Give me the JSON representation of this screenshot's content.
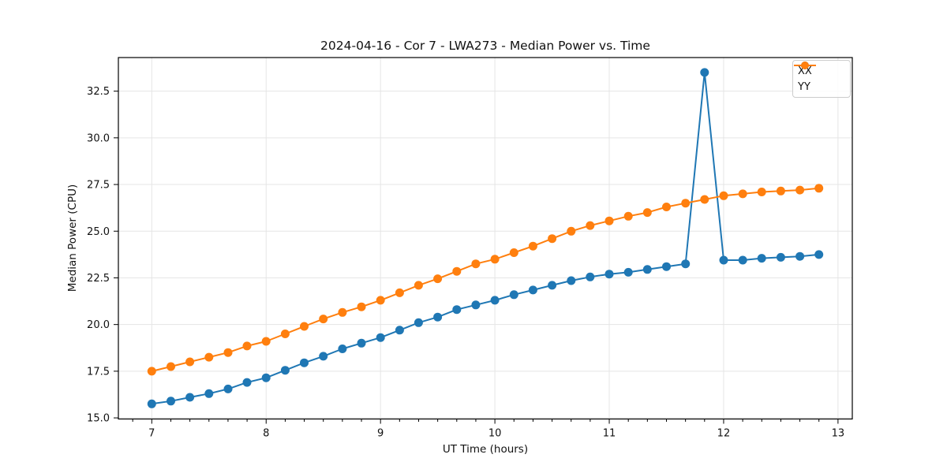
{
  "chart_data": {
    "type": "line",
    "title": "2024-04-16 - Cor 7 - LWA273 - Median Power vs. Time",
    "xlabel": "UT Time (hours)",
    "ylabel": "Median Power (CPU)",
    "xlim": [
      6.708,
      13.125
    ],
    "ylim": [
      14.94,
      34.3
    ],
    "x_ticks": [
      7,
      8,
      9,
      10,
      11,
      12,
      13
    ],
    "y_ticks": [
      15.0,
      17.5,
      20.0,
      22.5,
      25.0,
      27.5,
      30.0,
      32.5
    ],
    "x_minor_tick_step": 0.1667,
    "grid": true,
    "grid_color": "#e5e5e5",
    "legend_position": "upper right",
    "x": [
      7.0,
      7.167,
      7.333,
      7.5,
      7.667,
      7.833,
      8.0,
      8.167,
      8.333,
      8.5,
      8.667,
      8.833,
      9.0,
      9.167,
      9.333,
      9.5,
      9.667,
      9.833,
      10.0,
      10.167,
      10.333,
      10.5,
      10.667,
      10.833,
      11.0,
      11.167,
      11.333,
      11.5,
      11.667,
      11.833,
      12.0,
      12.167,
      12.333,
      12.5,
      12.667,
      12.833
    ],
    "series": [
      {
        "name": "XX",
        "color": "#1f77b4",
        "values": [
          15.75,
          15.9,
          16.1,
          16.3,
          16.55,
          16.9,
          17.15,
          17.55,
          17.95,
          18.3,
          18.7,
          19.0,
          19.3,
          19.7,
          20.1,
          20.4,
          20.8,
          21.05,
          21.3,
          21.6,
          21.85,
          22.1,
          22.35,
          22.55,
          22.7,
          22.8,
          22.95,
          23.1,
          23.25,
          33.5,
          23.45,
          23.45,
          23.55,
          23.6,
          23.65,
          23.75
        ]
      },
      {
        "name": "YY",
        "color": "#ff7f0e",
        "values": [
          17.5,
          17.75,
          18.0,
          18.25,
          18.5,
          18.85,
          19.1,
          19.5,
          19.9,
          20.3,
          20.65,
          20.95,
          21.3,
          21.7,
          22.1,
          22.45,
          22.85,
          23.25,
          23.5,
          23.85,
          24.2,
          24.6,
          25.0,
          25.3,
          25.55,
          25.8,
          26.0,
          26.3,
          26.5,
          26.7,
          26.9,
          27.0,
          27.1,
          27.15,
          27.2,
          27.3
        ]
      }
    ]
  }
}
